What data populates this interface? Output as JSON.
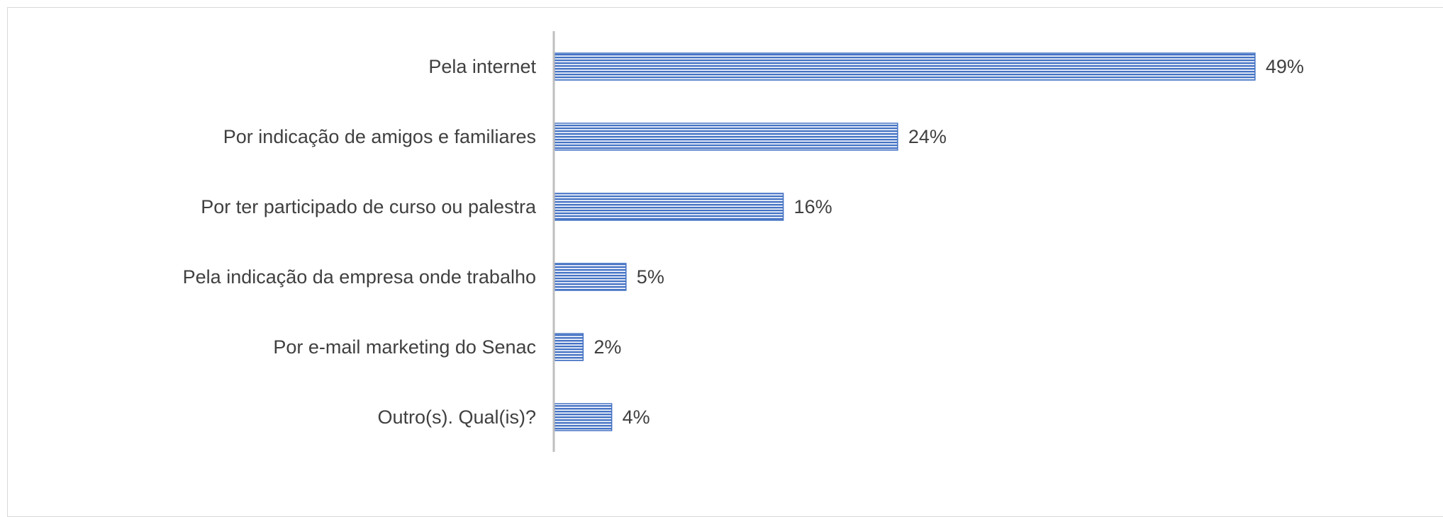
{
  "chart_data": {
    "type": "bar",
    "orientation": "horizontal",
    "categories": [
      "Pela internet",
      "Por indicação de amigos e familiares",
      "Por ter participado de curso ou palestra",
      "Pela indicação da empresa onde trabalho",
      "Por e-mail marketing do Senac",
      "Outro(s). Qual(is)?"
    ],
    "values": [
      49,
      24,
      16,
      5,
      2,
      4
    ],
    "value_labels": [
      "49%",
      "24%",
      "16%",
      "5%",
      "2%",
      "4%"
    ],
    "unit": "%",
    "xlim": [
      0,
      100
    ],
    "grid": false,
    "legend": "none",
    "bar_color": "#4472c4",
    "bar_pattern": "horizontal-stripes"
  }
}
